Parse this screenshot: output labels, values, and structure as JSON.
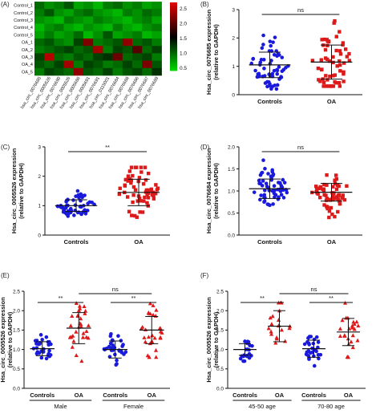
{
  "chart_data": [
    {
      "panel": "(A)",
      "type": "heatmap",
      "rows": [
        "Control_1",
        "Control_2",
        "Control_3",
        "Control_4",
        "Control_5",
        "OA_1",
        "OA_2",
        "OA_3",
        "OA_4",
        "OA_5"
      ],
      "columns": [
        "hsa_circ_0076685",
        "hsa_circ_0005526",
        "hsa_circ_0076690",
        "hsa_circ_0005526",
        "hsa_circ_0005686",
        "hsa_circ_0005691",
        "hsa_circ_0076691",
        "hsa_circ_0115001",
        "hsa_circ_0076684",
        "hsa_circ_0076688",
        "hsa_circ_0076686",
        "hsa_circ_0076687",
        "hsa_circ_0076689"
      ],
      "colorbar_ticks": [
        "2.5",
        "2.0",
        "1.5",
        "1.0",
        "0.5"
      ],
      "colorbar_range": [
        0.4,
        2.7
      ],
      "colors": {
        "low": "#00dd00",
        "mid": "#000000",
        "high": "#dd0000"
      },
      "values": [
        [
          1.0,
          0.8,
          0.9,
          1.1,
          0.7,
          0.8,
          0.6,
          0.9,
          1.0,
          0.8,
          0.9,
          0.7,
          0.8
        ],
        [
          0.9,
          1.1,
          0.8,
          0.7,
          0.9,
          1.0,
          0.8,
          0.7,
          0.6,
          0.9,
          0.8,
          1.0,
          0.9
        ],
        [
          0.8,
          0.7,
          0.6,
          0.9,
          0.8,
          0.7,
          0.9,
          0.8,
          0.7,
          0.6,
          0.8,
          0.9,
          0.7
        ],
        [
          0.6,
          0.8,
          0.9,
          0.7,
          0.6,
          0.8,
          0.7,
          0.6,
          0.9,
          0.7,
          0.6,
          0.8,
          0.9
        ],
        [
          0.7,
          0.9,
          0.7,
          0.8,
          1.0,
          0.6,
          0.8,
          1.1,
          0.7,
          0.8,
          0.9,
          0.6,
          0.7
        ],
        [
          1.0,
          1.1,
          0.9,
          0.8,
          1.2,
          2.2,
          0.9,
          1.0,
          1.1,
          2.3,
          1.0,
          1.1,
          0.9
        ],
        [
          0.9,
          1.0,
          1.1,
          1.2,
          1.0,
          1.1,
          2.4,
          0.9,
          1.2,
          1.1,
          2.0,
          1.0,
          1.2
        ],
        [
          1.2,
          2.5,
          1.0,
          0.9,
          1.1,
          1.0,
          1.2,
          1.3,
          2.1,
          1.0,
          1.1,
          1.2,
          0.9
        ],
        [
          1.1,
          1.0,
          1.2,
          2.4,
          0.9,
          1.2,
          1.1,
          0.9,
          1.0,
          1.2,
          1.0,
          2.2,
          1.1
        ],
        [
          0.9,
          1.2,
          1.1,
          1.0,
          2.3,
          1.1,
          1.0,
          1.2,
          0.9,
          1.1,
          1.2,
          1.0,
          1.3
        ]
      ]
    },
    {
      "panel": "(B)",
      "type": "scatter",
      "ylabel": "Hsa_circ_0076685 expression\n(relative to GAPDH)",
      "ylim": [
        0,
        3
      ],
      "yticks": [
        "0",
        "1",
        "2",
        "3"
      ],
      "ytick_values": [
        0,
        1,
        2,
        3
      ],
      "significance": [
        {
          "text": "ns",
          "from": 0,
          "to": 1
        }
      ],
      "groups": [
        {
          "label": "Controls",
          "color": "#1a1adc",
          "marker": "circle",
          "mean": 1.05,
          "sd": 0.45,
          "n": 60,
          "min": 0.2,
          "max": 2.1,
          "seed": 11
        },
        {
          "label": "OA",
          "color": "#dd1a1a",
          "marker": "square",
          "mean": 1.15,
          "sd": 0.6,
          "n": 60,
          "min": 0.3,
          "max": 2.6,
          "seed": 12
        }
      ]
    },
    {
      "panel": "(C)",
      "type": "scatter",
      "ylabel": "Hsa_circ_0005526 expression\n(relative to GAPDH)",
      "ylim": [
        0,
        3
      ],
      "yticks": [
        "0",
        "1",
        "2",
        "3"
      ],
      "ytick_values": [
        0,
        1,
        2,
        3
      ],
      "significance": [
        {
          "text": "**",
          "from": 0,
          "to": 1
        }
      ],
      "groups": [
        {
          "label": "Controls",
          "color": "#1a1adc",
          "marker": "circle",
          "mean": 1.0,
          "sd": 0.2,
          "n": 60,
          "min": 0.6,
          "max": 1.5,
          "seed": 21
        },
        {
          "label": "OA",
          "color": "#dd1a1a",
          "marker": "square",
          "mean": 1.45,
          "sd": 0.45,
          "n": 60,
          "min": 0.6,
          "max": 2.3,
          "seed": 22
        }
      ]
    },
    {
      "panel": "(D)",
      "type": "scatter",
      "ylabel": "Hsa_circ_0076684 expression\n(relative to GAPDH)",
      "ylim": [
        0,
        2
      ],
      "yticks": [
        "0.0",
        "0.5",
        "1.0",
        "1.5",
        "2.0"
      ],
      "ytick_values": [
        0,
        0.5,
        1.0,
        1.5,
        2.0
      ],
      "significance": [
        {
          "text": "ns",
          "from": 0,
          "to": 1
        }
      ],
      "groups": [
        {
          "label": "Controls",
          "color": "#1a1adc",
          "marker": "circle",
          "mean": 1.05,
          "sd": 0.22,
          "n": 60,
          "min": 0.5,
          "max": 1.7,
          "seed": 31
        },
        {
          "label": "OA",
          "color": "#dd1a1a",
          "marker": "square",
          "mean": 0.97,
          "sd": 0.2,
          "n": 60,
          "min": 0.4,
          "max": 1.5,
          "seed": 32
        }
      ]
    },
    {
      "panel": "(E)",
      "type": "scatter",
      "ylabel": "Hsa_circ_0005526 expression\n(relative to GAPDH)",
      "ylim": [
        0,
        2.5
      ],
      "yticks": [
        "0.0",
        "0.5",
        "1.0",
        "1.5",
        "2.0",
        "2.5"
      ],
      "ytick_values": [
        0,
        0.5,
        1.0,
        1.5,
        2.0,
        2.5
      ],
      "significance": [
        {
          "text": "**",
          "from": 0,
          "to": 1,
          "level": 0
        },
        {
          "text": "**",
          "from": 2,
          "to": 3,
          "level": 0
        },
        {
          "text": "ns",
          "from": 1,
          "to": 3,
          "level": 1
        }
      ],
      "subgroups": [
        {
          "label": "Male",
          "from": 0,
          "to": 1
        },
        {
          "label": "Female",
          "from": 2,
          "to": 3
        }
      ],
      "groups": [
        {
          "label": "Controls",
          "color": "#1a1adc",
          "marker": "circle",
          "mean": 1.02,
          "sd": 0.18,
          "n": 30,
          "min": 0.6,
          "max": 1.4,
          "seed": 41
        },
        {
          "label": "OA",
          "color": "#dd1a1a",
          "marker": "triangle",
          "mean": 1.55,
          "sd": 0.4,
          "n": 30,
          "min": 0.7,
          "max": 2.3,
          "seed": 42
        },
        {
          "label": "Controls",
          "color": "#1a1adc",
          "marker": "circle",
          "mean": 1.0,
          "sd": 0.22,
          "n": 30,
          "min": 0.5,
          "max": 1.4,
          "seed": 43
        },
        {
          "label": "OA",
          "color": "#dd1a1a",
          "marker": "triangle",
          "mean": 1.5,
          "sd": 0.35,
          "n": 30,
          "min": 0.8,
          "max": 2.2,
          "seed": 44
        }
      ]
    },
    {
      "panel": "(F)",
      "type": "scatter",
      "ylabel": "Hsa_circ_0005526 expression\n(relative to GAPDH)",
      "ylim": [
        0,
        2.5
      ],
      "yticks": [
        "0.0",
        "0.5",
        "1.0",
        "1.5",
        "2.0",
        "2.5"
      ],
      "ytick_values": [
        0,
        0.5,
        1.0,
        1.5,
        2.0,
        2.5
      ],
      "significance": [
        {
          "text": "**",
          "from": 0,
          "to": 1,
          "level": 0
        },
        {
          "text": "**",
          "from": 2,
          "to": 3,
          "level": 0
        },
        {
          "text": "ns",
          "from": 1,
          "to": 3,
          "level": 1
        }
      ],
      "subgroups": [
        {
          "label": "45-50 age",
          "from": 0,
          "to": 1
        },
        {
          "label": "70-80 age",
          "from": 2,
          "to": 3
        }
      ],
      "groups": [
        {
          "label": "Controls",
          "color": "#1a1adc",
          "marker": "circle",
          "mean": 1.0,
          "sd": 0.15,
          "n": 20,
          "min": 0.7,
          "max": 1.3,
          "seed": 51
        },
        {
          "label": "OA",
          "color": "#dd1a1a",
          "marker": "triangle",
          "mean": 1.6,
          "sd": 0.4,
          "n": 20,
          "min": 0.9,
          "max": 2.2,
          "seed": 52
        },
        {
          "label": "Controls",
          "color": "#1a1adc",
          "marker": "circle",
          "mean": 1.02,
          "sd": 0.22,
          "n": 30,
          "min": 0.5,
          "max": 1.5,
          "seed": 53
        },
        {
          "label": "OA",
          "color": "#dd1a1a",
          "marker": "triangle",
          "mean": 1.45,
          "sd": 0.35,
          "n": 25,
          "min": 0.8,
          "max": 2.2,
          "seed": 54
        }
      ]
    }
  ]
}
